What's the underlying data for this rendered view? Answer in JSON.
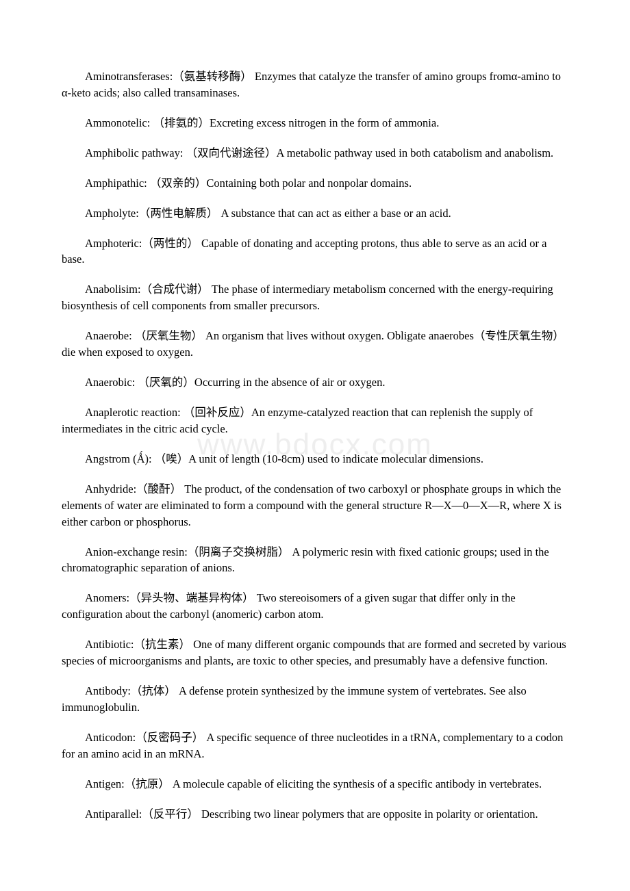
{
  "watermark": "www.bdocx.com",
  "entries": [
    "Aminotransferases:（氨基转移酶） Enzymes that catalyze the transfer of amino groups fromα-amino to α-keto acids; also called transaminases.",
    "Ammonotelic: （排氨的）Excreting excess nitrogen in the form of ammonia.",
    "Amphibolic pathway: （双向代谢途径）A metabolic pathway used in both catabolism and anabolism.",
    "Amphipathic: （双亲的）Containing both polar and nonpolar domains.",
    "Ampholyte:（两性电解质） A substance that can act as either a base or an acid.",
    "Amphoteric:（两性的） Capable of donating and accepting protons, thus able to serve as an acid or a base.",
    "Anabolisim:（合成代谢） The phase of intermediary metabolism concerned with the energy-requiring biosynthesis of cell components from smaller precursors.",
    "Anaerobe: （厌氧生物） An organism that lives without oxygen. Obligate anaerobes（专性厌氧生物） die when exposed to oxygen.",
    "Anaerobic: （厌氧的）Occurring in the absence of air or oxygen.",
    "Anaplerotic reaction: （回补反应）An enzyme-catalyzed reaction that can replenish the supply of intermediates in the citric acid cycle.",
    "Angstrom (Ǻ): （唉）A unit of length (10-8cm) used to indicate molecular dimensions.",
    "Anhydride:（酸酐） The product, of the condensation of two carboxyl or phosphate groups in which the elements of water are eliminated to form a compound with the general structure R—X—0—X—R, where X is either carbon or phosphorus.",
    "Anion-exchange resin:（阴离子交换树脂） A polymeric resin with fixed cationic groups; used in the chromatographic separation of anions.",
    "Anomers:（异头物、端基异构体） Two stereoisomers of a given sugar that differ only in the configuration about the carbonyl (anomeric) carbon atom.",
    "Antibiotic:（抗生素） One of many different organic compounds that are formed and secreted by various species of microorganisms and plants, are toxic to other species, and presumably have a defensive function.",
    "Antibody:（抗体） A defense protein synthesized by the immune system of vertebrates. See also immunoglobulin.",
    "Anticodon:（反密码子） A specific sequence of three nucleotides in a tRNA, complementary to a codon for an amino acid in an mRNA.",
    "Antigen:（抗原） A molecule capable of eliciting the synthesis of a specific antibody in vertebrates.",
    "Antiparallel:（反平行） Describing two linear polymers that are opposite in polarity or orientation."
  ]
}
